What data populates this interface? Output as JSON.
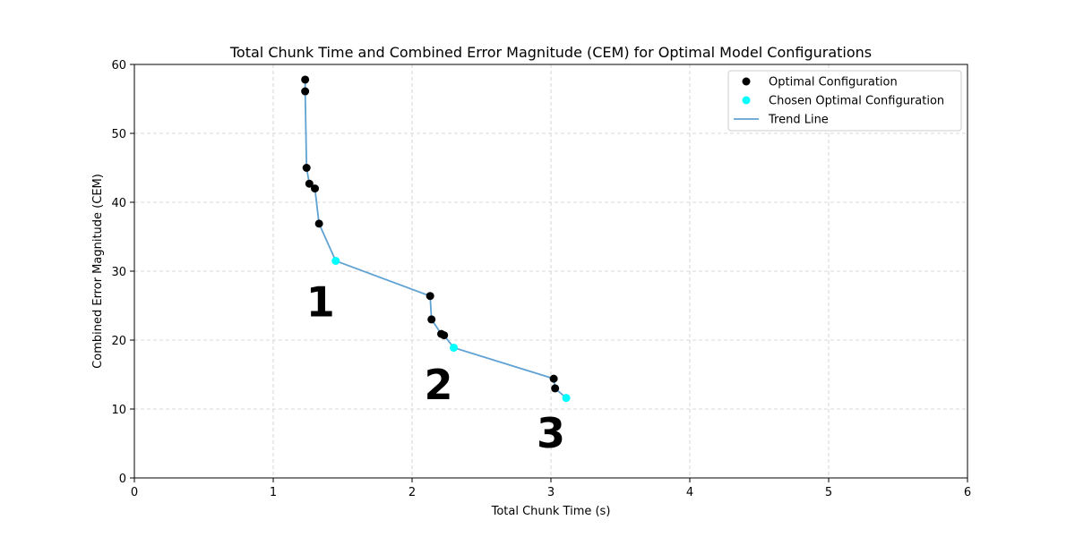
{
  "chart_data": {
    "type": "scatter",
    "title": "Total Chunk Time and Combined Error Magnitude (CEM) for Optimal Model Configurations",
    "xlabel": "Total Chunk Time (s)",
    "ylabel": "Combined Error Magnitude (CEM)",
    "xlim": [
      0,
      6
    ],
    "ylim": [
      0,
      60
    ],
    "xticks": [
      0,
      1,
      2,
      3,
      4,
      5,
      6
    ],
    "yticks": [
      0,
      10,
      20,
      30,
      40,
      50,
      60
    ],
    "grid": true,
    "legend_position": "top-right",
    "series": [
      {
        "name": "Optimal Configuration",
        "kind": "scatter",
        "color": "#000000",
        "points": [
          {
            "x": 1.23,
            "y": 57.8
          },
          {
            "x": 1.23,
            "y": 56.1
          },
          {
            "x": 1.24,
            "y": 45.0
          },
          {
            "x": 1.26,
            "y": 42.7
          },
          {
            "x": 1.3,
            "y": 42.0
          },
          {
            "x": 1.33,
            "y": 36.9
          },
          {
            "x": 2.13,
            "y": 26.4
          },
          {
            "x": 2.14,
            "y": 23.0
          },
          {
            "x": 2.21,
            "y": 20.9
          },
          {
            "x": 2.23,
            "y": 20.7
          },
          {
            "x": 3.02,
            "y": 14.4
          },
          {
            "x": 3.03,
            "y": 13.0
          }
        ]
      },
      {
        "name": "Chosen Optimal Configuration",
        "kind": "scatter",
        "color": "#00ffff",
        "points": [
          {
            "x": 1.45,
            "y": 31.5
          },
          {
            "x": 2.3,
            "y": 18.9
          },
          {
            "x": 3.11,
            "y": 11.6
          }
        ]
      },
      {
        "name": "Trend Line",
        "kind": "line",
        "color": "#5fa2d3",
        "points": [
          {
            "x": 1.23,
            "y": 57.8
          },
          {
            "x": 1.23,
            "y": 56.1
          },
          {
            "x": 1.24,
            "y": 45.0
          },
          {
            "x": 1.26,
            "y": 42.7
          },
          {
            "x": 1.3,
            "y": 42.0
          },
          {
            "x": 1.33,
            "y": 36.9
          },
          {
            "x": 1.45,
            "y": 31.5
          },
          {
            "x": 2.13,
            "y": 26.4
          },
          {
            "x": 2.14,
            "y": 23.0
          },
          {
            "x": 2.21,
            "y": 20.9
          },
          {
            "x": 2.23,
            "y": 20.7
          },
          {
            "x": 2.3,
            "y": 18.9
          },
          {
            "x": 3.02,
            "y": 14.4
          },
          {
            "x": 3.03,
            "y": 13.0
          },
          {
            "x": 3.11,
            "y": 11.6
          }
        ]
      }
    ],
    "annotations": [
      {
        "text": "1",
        "x": 1.34,
        "y": 25.5
      },
      {
        "text": "2",
        "x": 2.19,
        "y": 13.5
      },
      {
        "text": "3",
        "x": 3.0,
        "y": 6.5
      }
    ],
    "legend": [
      {
        "label": "Optimal Configuration",
        "marker": "dot",
        "color": "#000000"
      },
      {
        "label": "Chosen Optimal Configuration",
        "marker": "dot",
        "color": "#00ffff"
      },
      {
        "label": "Trend Line",
        "marker": "line",
        "color": "#5fa2d3"
      }
    ]
  }
}
